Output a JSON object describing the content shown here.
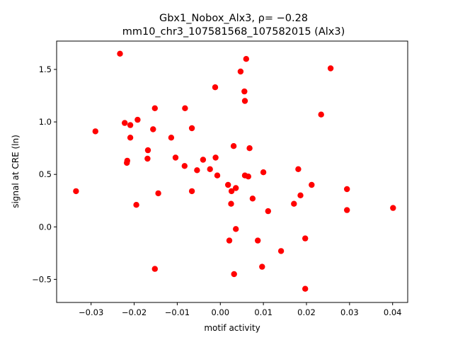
{
  "chart_data": {
    "type": "scatter",
    "title_lines": [
      "Gbx1_Nobox_Alx3, ρ= −0.28",
      "mm10_chr3_107581568_107582015 (Alx3)"
    ],
    "xlabel": "motif activity",
    "ylabel": "signal at CRE (ln)",
    "xlim": [
      -0.038,
      0.0435
    ],
    "ylim": [
      -0.72,
      1.77
    ],
    "xticks": [
      -0.03,
      -0.02,
      -0.01,
      0.0,
      0.01,
      0.02,
      0.03,
      0.04
    ],
    "xtick_labels": [
      "−0.03",
      "−0.02",
      "−0.01",
      "0.00",
      "0.01",
      "0.02",
      "0.03",
      "0.04"
    ],
    "yticks": [
      -0.5,
      0.0,
      0.5,
      1.0,
      1.5
    ],
    "ytick_labels": [
      "−0.5",
      "0.0",
      "0.5",
      "1.0",
      "1.5"
    ],
    "grid": false,
    "marker_color": "#ff0000",
    "points": [
      {
        "x": -0.0335,
        "y": 0.34
      },
      {
        "x": -0.029,
        "y": 0.91
      },
      {
        "x": -0.0233,
        "y": 1.65
      },
      {
        "x": -0.0222,
        "y": 0.99
      },
      {
        "x": -0.0217,
        "y": 0.61
      },
      {
        "x": -0.0216,
        "y": 0.63
      },
      {
        "x": -0.0209,
        "y": 0.85
      },
      {
        "x": -0.0209,
        "y": 0.97
      },
      {
        "x": -0.0195,
        "y": 0.21
      },
      {
        "x": -0.0192,
        "y": 1.02
      },
      {
        "x": -0.0169,
        "y": 0.65
      },
      {
        "x": -0.0168,
        "y": 0.73
      },
      {
        "x": -0.0156,
        "y": 0.93
      },
      {
        "x": -0.0152,
        "y": 1.13
      },
      {
        "x": -0.0152,
        "y": -0.4
      },
      {
        "x": -0.0144,
        "y": 0.32
      },
      {
        "x": -0.0114,
        "y": 0.85
      },
      {
        "x": -0.0104,
        "y": 0.66
      },
      {
        "x": -0.0083,
        "y": 0.58
      },
      {
        "x": -0.0082,
        "y": 1.13
      },
      {
        "x": -0.0066,
        "y": 0.34
      },
      {
        "x": -0.0066,
        "y": 0.94
      },
      {
        "x": -0.0054,
        "y": 0.54
      },
      {
        "x": -0.004,
        "y": 0.64
      },
      {
        "x": -0.0024,
        "y": 0.55
      },
      {
        "x": -0.0012,
        "y": 1.33
      },
      {
        "x": -0.0011,
        "y": 0.66
      },
      {
        "x": -0.0007,
        "y": 0.49
      },
      {
        "x": 0.0018,
        "y": 0.4
      },
      {
        "x": 0.0021,
        "y": -0.13
      },
      {
        "x": 0.0025,
        "y": 0.22
      },
      {
        "x": 0.0026,
        "y": 0.34
      },
      {
        "x": 0.0031,
        "y": 0.77
      },
      {
        "x": 0.0032,
        "y": -0.45
      },
      {
        "x": 0.0036,
        "y": -0.02
      },
      {
        "x": 0.0036,
        "y": 0.37
      },
      {
        "x": 0.0047,
        "y": 1.48
      },
      {
        "x": 0.0056,
        "y": 1.29
      },
      {
        "x": 0.0057,
        "y": 1.2
      },
      {
        "x": 0.0057,
        "y": 0.49
      },
      {
        "x": 0.006,
        "y": 1.6
      },
      {
        "x": 0.0065,
        "y": 0.48
      },
      {
        "x": 0.0068,
        "y": 0.75
      },
      {
        "x": 0.0075,
        "y": 0.27
      },
      {
        "x": 0.0087,
        "y": -0.13
      },
      {
        "x": 0.0097,
        "y": -0.38
      },
      {
        "x": 0.01,
        "y": 0.52
      },
      {
        "x": 0.0111,
        "y": 0.15
      },
      {
        "x": 0.0141,
        "y": -0.23
      },
      {
        "x": 0.0171,
        "y": 0.22
      },
      {
        "x": 0.0181,
        "y": 0.55
      },
      {
        "x": 0.0186,
        "y": 0.3
      },
      {
        "x": 0.0197,
        "y": -0.11
      },
      {
        "x": 0.0197,
        "y": -0.59
      },
      {
        "x": 0.0212,
        "y": 0.4
      },
      {
        "x": 0.0234,
        "y": 1.07
      },
      {
        "x": 0.0256,
        "y": 1.51
      },
      {
        "x": 0.0294,
        "y": 0.36
      },
      {
        "x": 0.0294,
        "y": 0.16
      },
      {
        "x": 0.0401,
        "y": 0.18
      }
    ]
  }
}
